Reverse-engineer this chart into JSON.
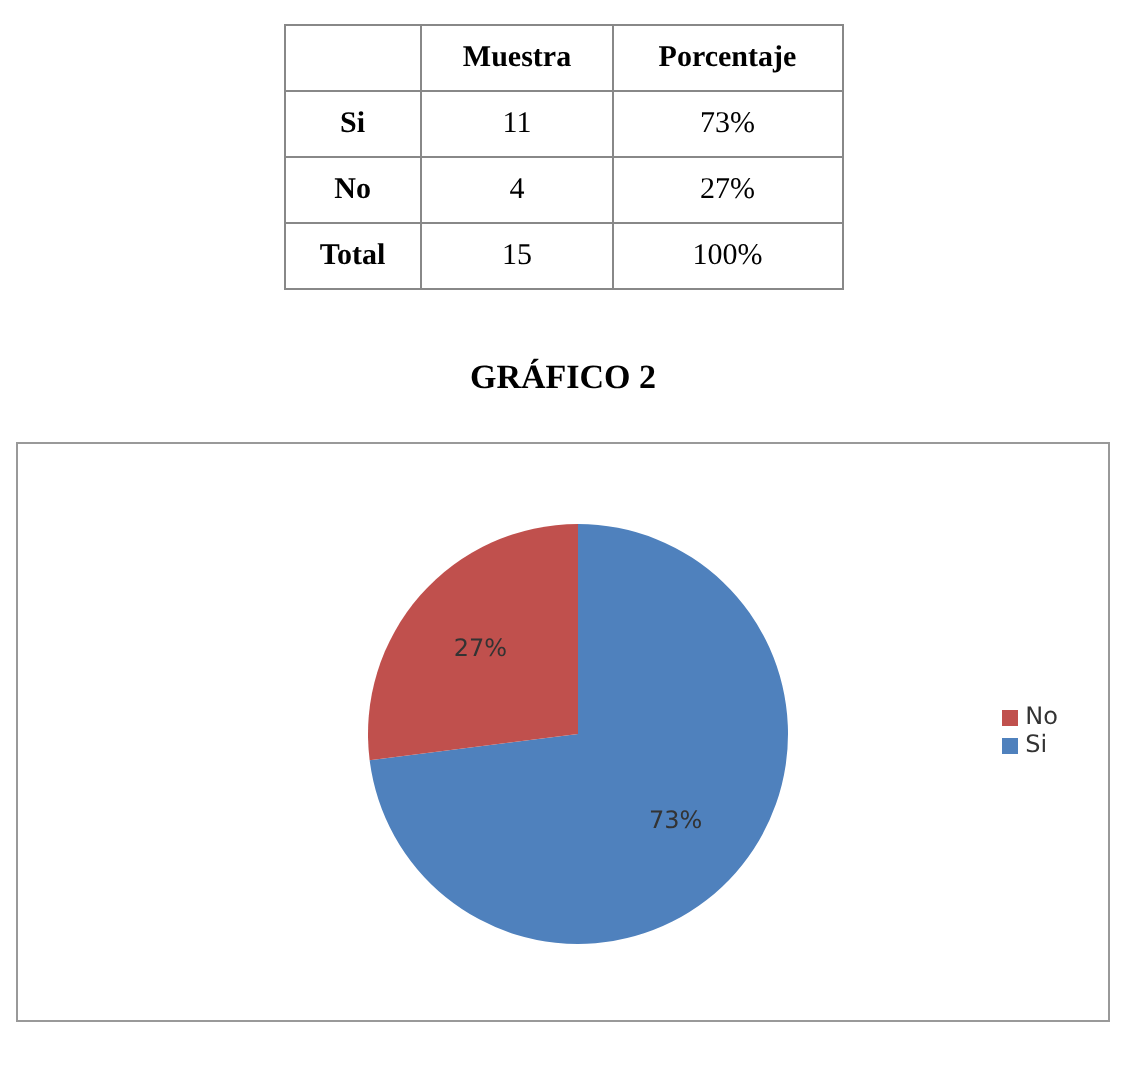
{
  "chart_data": {
    "type": "pie",
    "title": "GRÁFICO 2",
    "categories": [
      "Si",
      "No"
    ],
    "values": [
      73,
      27
    ],
    "value_labels": [
      "73%",
      "27%"
    ],
    "colors": [
      "#4f81bd",
      "#c0504d"
    ],
    "annotations": [
      "Muestra",
      "Porcentaje",
      "11",
      "4",
      "Total",
      "15",
      "100%"
    ],
    "legend": "right"
  }
}
